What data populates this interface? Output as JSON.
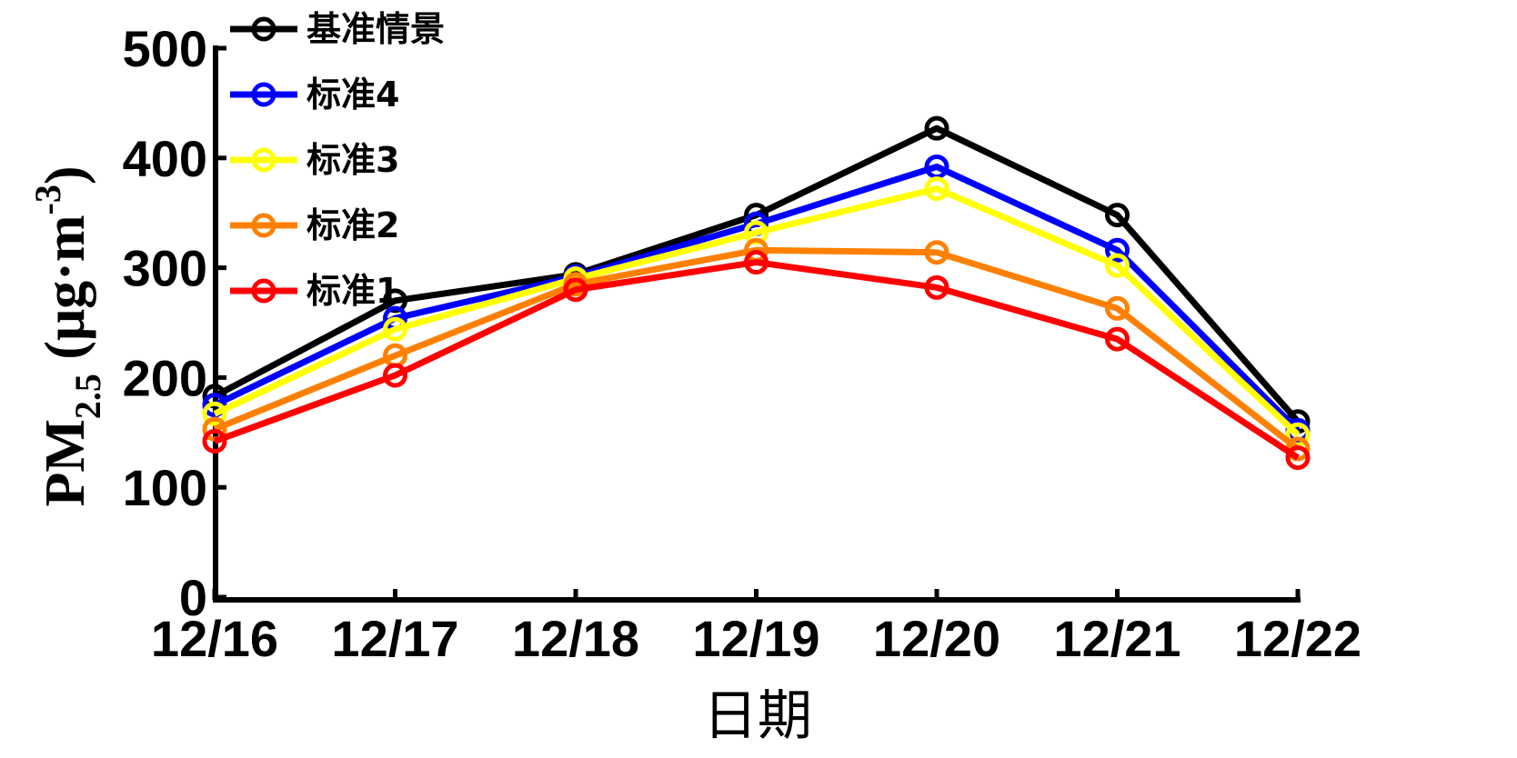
{
  "chart_data": {
    "type": "line",
    "categories": [
      "12/16",
      "12/17",
      "12/18",
      "12/19",
      "12/20",
      "12/21",
      "12/22"
    ],
    "series": [
      {
        "name": "基准情景",
        "color": "#000000",
        "values": [
          183,
          270,
          294,
          348,
          427,
          348,
          160
        ]
      },
      {
        "name": "标准4",
        "color": "#0000ff",
        "values": [
          175,
          254,
          292,
          340,
          392,
          316,
          152
        ]
      },
      {
        "name": "标准3",
        "color": "#ffff00",
        "values": [
          167,
          244,
          290,
          332,
          372,
          302,
          148
        ]
      },
      {
        "name": "标准2",
        "color": "#ff8000",
        "values": [
          153,
          220,
          285,
          316,
          314,
          263,
          135
        ]
      },
      {
        "name": "标准1",
        "color": "#ff0000",
        "values": [
          142,
          202,
          280,
          305,
          282,
          235,
          127
        ]
      }
    ],
    "xlabel": "日期",
    "ylabel": {
      "main": "PM",
      "sub": "2.5",
      "unit_open": " (μg·m",
      "sup": "-3",
      "unit_close": ")"
    },
    "ylim": [
      0,
      500
    ],
    "yticks": [
      "0",
      "100",
      "200",
      "300",
      "400",
      "500"
    ],
    "grid": false,
    "legend_position": "top-left"
  }
}
